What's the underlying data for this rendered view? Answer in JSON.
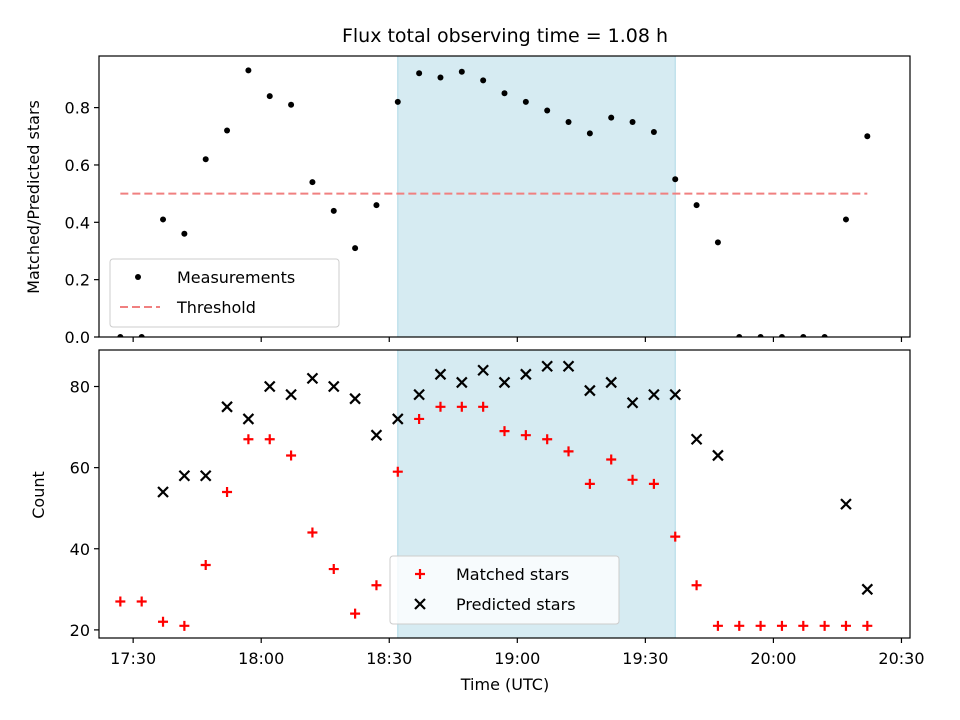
{
  "chart_data": [
    {
      "type": "scatter",
      "title": "Flux total observing time = 1.08 h",
      "xlabel": "",
      "ylabel": "Matched/Predicted stars",
      "xlim": [
        "17:22",
        "20:32"
      ],
      "ylim": [
        0,
        0.98
      ],
      "yticks": [
        0.0,
        0.2,
        0.4,
        0.6,
        0.8
      ],
      "ytick_labels": [
        "0.0",
        "0.2",
        "0.4",
        "0.6",
        "0.8"
      ],
      "shaded_region": {
        "x": [
          "18:32",
          "19:37"
        ],
        "color": "#add8e6"
      },
      "legend": {
        "position": "lower-left",
        "entries": [
          "Measurements",
          "Threshold"
        ]
      },
      "threshold": {
        "name": "Threshold",
        "y": 0.5,
        "x": [
          "17:27",
          "20:22"
        ],
        "color": "#f08080",
        "style": "dashed"
      },
      "series": [
        {
          "name": "Measurements",
          "color": "#000000",
          "marker": "dot",
          "x": [
            "17:27",
            "17:32",
            "17:37",
            "17:42",
            "17:47",
            "17:52",
            "17:57",
            "18:02",
            "18:07",
            "18:12",
            "18:17",
            "18:22",
            "18:27",
            "18:32",
            "18:37",
            "18:42",
            "18:47",
            "18:52",
            "18:57",
            "19:02",
            "19:07",
            "19:12",
            "19:17",
            "19:22",
            "19:27",
            "19:32",
            "19:37",
            "19:42",
            "19:47",
            "19:52",
            "19:57",
            "20:02",
            "20:07",
            "20:12",
            "20:17",
            "20:22"
          ],
          "y": [
            0.0,
            0.0,
            0.41,
            0.36,
            0.62,
            0.72,
            0.93,
            0.84,
            0.81,
            0.54,
            0.44,
            0.31,
            0.46,
            0.82,
            0.92,
            0.905,
            0.925,
            0.895,
            0.85,
            0.82,
            0.79,
            0.75,
            0.71,
            0.765,
            0.75,
            0.715,
            0.55,
            0.46,
            0.33,
            0.0,
            0.0,
            0.0,
            0.0,
            0.0,
            0.41,
            0.7
          ]
        }
      ]
    },
    {
      "type": "scatter",
      "title": "",
      "xlabel": "Time (UTC)",
      "ylabel": "Count",
      "xlim": [
        "17:22",
        "20:32"
      ],
      "ylim": [
        18,
        89
      ],
      "xticks": [
        "17:30",
        "18:00",
        "18:30",
        "19:00",
        "19:30",
        "20:00",
        "20:30"
      ],
      "yticks": [
        20,
        40,
        60,
        80
      ],
      "ytick_labels": [
        "20",
        "40",
        "60",
        "80"
      ],
      "shaded_region": {
        "x": [
          "18:32",
          "19:37"
        ],
        "color": "#add8e6"
      },
      "legend": {
        "position": "lower-center",
        "entries": [
          "Matched stars",
          "Predicted stars"
        ]
      },
      "series": [
        {
          "name": "Matched stars",
          "color": "#ff0000",
          "marker": "plus",
          "x": [
            "17:27",
            "17:32",
            "17:37",
            "17:42",
            "17:47",
            "17:52",
            "17:57",
            "18:02",
            "18:07",
            "18:12",
            "18:17",
            "18:22",
            "18:27",
            "18:32",
            "18:37",
            "18:42",
            "18:47",
            "18:52",
            "18:57",
            "19:02",
            "19:07",
            "19:12",
            "19:17",
            "19:22",
            "19:27",
            "19:32",
            "19:37",
            "19:42",
            "19:47",
            "19:52",
            "19:57",
            "20:02",
            "20:07",
            "20:12",
            "20:17",
            "20:22"
          ],
          "y": [
            27,
            27,
            22,
            21,
            36,
            54,
            67,
            67,
            63,
            44,
            35,
            24,
            31,
            59,
            72,
            75,
            75,
            75,
            69,
            68,
            67,
            64,
            56,
            62,
            57,
            56,
            43,
            31,
            21,
            21,
            21,
            21,
            21,
            21,
            21,
            21
          ]
        },
        {
          "name": "Predicted stars",
          "color": "#000000",
          "marker": "x",
          "x": [
            "17:37",
            "17:42",
            "17:47",
            "17:52",
            "17:57",
            "18:02",
            "18:07",
            "18:12",
            "18:17",
            "18:22",
            "18:27",
            "18:32",
            "18:37",
            "18:42",
            "18:47",
            "18:52",
            "18:57",
            "19:02",
            "19:07",
            "19:12",
            "19:17",
            "19:22",
            "19:27",
            "19:32",
            "19:37",
            "19:42",
            "19:47",
            "20:17",
            "20:22"
          ],
          "y": [
            54,
            58,
            58,
            75,
            72,
            80,
            78,
            82,
            80,
            77,
            68,
            72,
            78,
            83,
            81,
            84,
            81,
            83,
            85,
            85,
            79,
            81,
            76,
            78,
            78,
            67,
            63,
            51,
            30
          ]
        }
      ]
    }
  ]
}
